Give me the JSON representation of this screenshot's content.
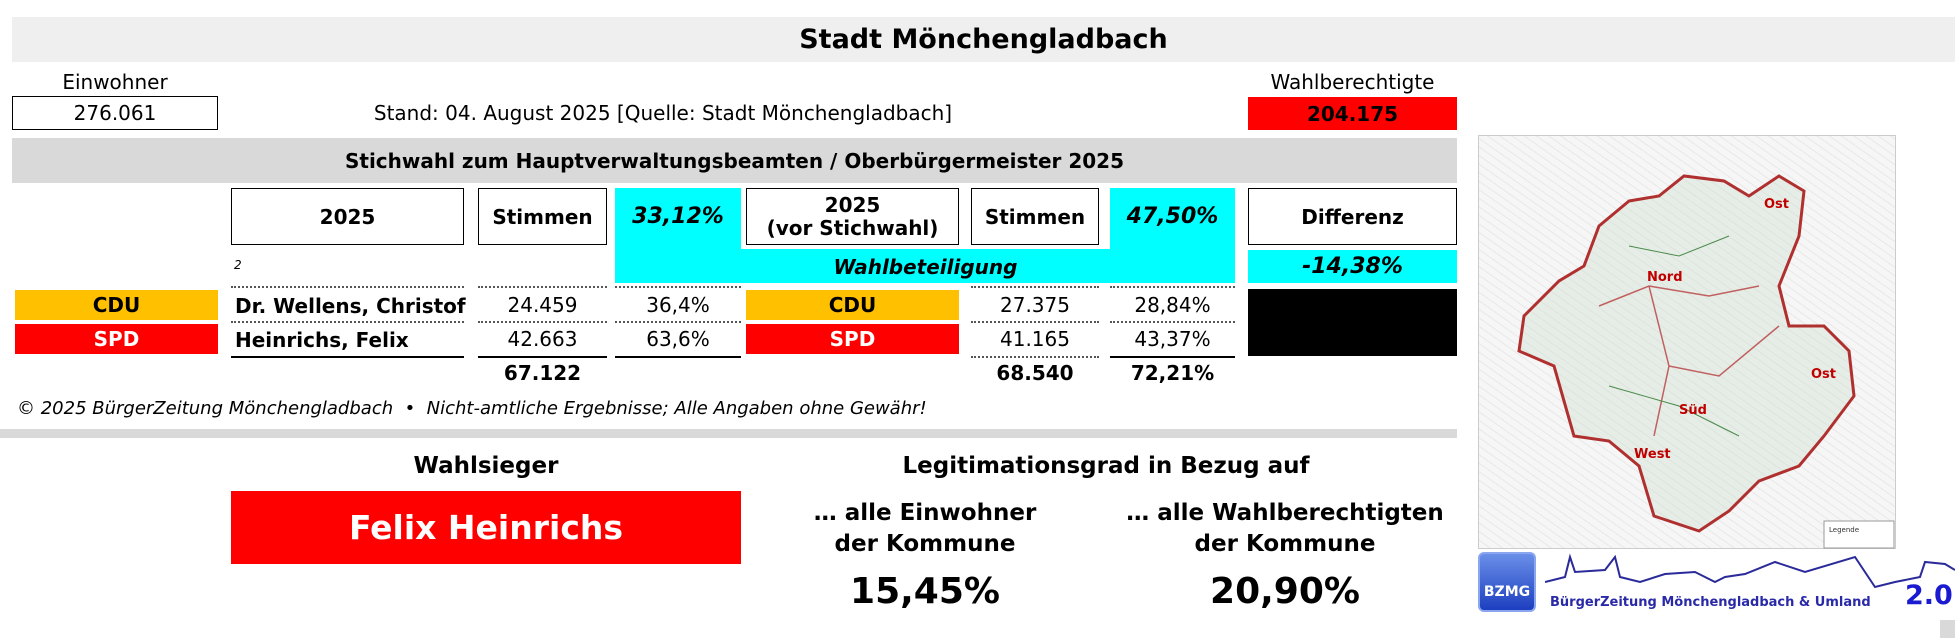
{
  "title": "Stadt Mönchengladbach",
  "einwohner": {
    "label": "Einwohner",
    "value": "276.061"
  },
  "stand": "Stand: 04. August 2025 [Quelle: Stadt Mönchengladbach]",
  "wahlberechtigte": {
    "label": "Wahlberechtigte",
    "value": "204.175"
  },
  "section_title": "Stichwahl zum Hauptverwaltungsbeamten / Oberbürgermeister 2025",
  "headers": {
    "year": "2025",
    "stimmen": "Stimmen",
    "turnout": "33,12%",
    "year2_line1": "2025",
    "year2_line2": "(vor Stichwahl)",
    "stimmen2": "Stimmen",
    "turnout2": "47,50%",
    "differenz": "Differenz",
    "wahlbeteiligung": "Wahlbeteiligung",
    "diff_value": "-14,38%",
    "footnote": "2"
  },
  "rows": [
    {
      "party": "CDU",
      "color": "#ffc000",
      "name": "Dr. Wellens, Christof",
      "votes": "24.459",
      "pct": "36,4%",
      "party2": "CDU",
      "votes2": "27.375",
      "pct2": "28,84%"
    },
    {
      "party": "SPD",
      "color": "#ff0000",
      "name": "Heinrichs, Felix",
      "votes": "42.663",
      "pct": "63,6%",
      "party2": "SPD",
      "votes2": "41.165",
      "pct2": "43,37%"
    }
  ],
  "totals": {
    "votes": "67.122",
    "votes2": "68.540",
    "pct2": "72,21%"
  },
  "footer": "© 2025 BürgerZeitung Mönchengladbach  •  Nicht-amtliche Ergebnisse; Alle Angaben ohne Gewähr!",
  "winner": {
    "label": "Wahlsieger",
    "name": "Felix Heinrichs"
  },
  "legitimation": {
    "title": "Legitimationsgrad in Bezug auf",
    "einwohner_l1": "… alle Einwohner",
    "einwohner_l2": "der Kommune",
    "einwohner_value": "15,45%",
    "wb_l1": "… alle Wahlberechtigten",
    "wb_l2": "der Kommune",
    "wb_value": "20,90%"
  },
  "map": {
    "labels": [
      "Nord",
      "Ost",
      "Süd",
      "West",
      "Ost"
    ],
    "legend": "Legende"
  },
  "logo": {
    "badge": "BZMG",
    "text": "BürgerZeitung Mönchengladbach & Umland",
    "version": "2.0"
  }
}
